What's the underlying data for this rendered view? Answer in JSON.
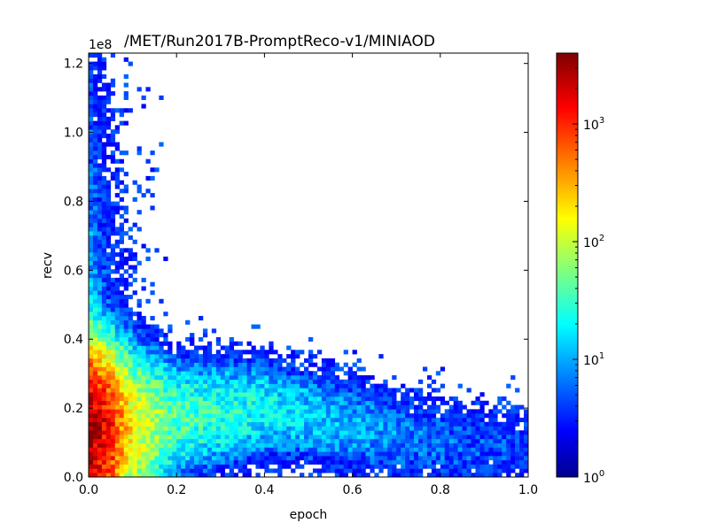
{
  "chart_data": {
    "type": "heatmap",
    "title": "/MET/Run2017B-PromptReco-v1/MINIAOD",
    "xlabel": "epoch",
    "ylabel": "recv",
    "y_offset_label": "1e8",
    "xlim": [
      0.0,
      1.0
    ],
    "ylim": [
      0.0,
      1.23
    ],
    "x_ticks": [
      "0.0",
      "0.2",
      "0.4",
      "0.6",
      "0.8",
      "1.0"
    ],
    "y_ticks": [
      "0.0",
      "0.2",
      "0.4",
      "0.6",
      "0.8",
      "1.0",
      "1.2"
    ],
    "colorbar": {
      "scale": "log",
      "range": [
        1,
        4000
      ],
      "colormap": "jet",
      "ticks": [
        {
          "value": 1,
          "base": "10",
          "exp": "0"
        },
        {
          "value": 10,
          "base": "10",
          "exp": "1"
        },
        {
          "value": 100,
          "base": "10",
          "exp": "2"
        },
        {
          "value": 1000,
          "base": "10",
          "exp": "3"
        }
      ]
    },
    "bins": {
      "nx": 100,
      "ny": 100
    },
    "density_model": {
      "description": "2D histogram of recv vs epoch, densest near epoch 0 and low recv, band of decreasing recv with epoch",
      "ridge": [
        {
          "x": 0.0,
          "y_center": 0.13,
          "y_width": 0.1,
          "peak": 3000
        },
        {
          "x": 0.05,
          "y_center": 0.13,
          "y_width": 0.1,
          "peak": 1000
        },
        {
          "x": 0.1,
          "y_center": 0.14,
          "y_width": 0.1,
          "peak": 120
        },
        {
          "x": 0.2,
          "y_center": 0.17,
          "y_width": 0.08,
          "peak": 25
        },
        {
          "x": 0.4,
          "y_center": 0.2,
          "y_width": 0.07,
          "peak": 12
        },
        {
          "x": 0.6,
          "y_center": 0.15,
          "y_width": 0.07,
          "peak": 6
        },
        {
          "x": 0.8,
          "y_center": 0.1,
          "y_width": 0.07,
          "peak": 3
        },
        {
          "x": 1.0,
          "y_center": 0.08,
          "y_width": 0.06,
          "peak": 2
        }
      ]
    }
  },
  "colors": {
    "background": "#ffffff",
    "axes": "#000000",
    "colormap_stops": [
      "#00008f",
      "#0000ff",
      "#00ffff",
      "#ffff00",
      "#ff0000",
      "#7f0000"
    ]
  }
}
